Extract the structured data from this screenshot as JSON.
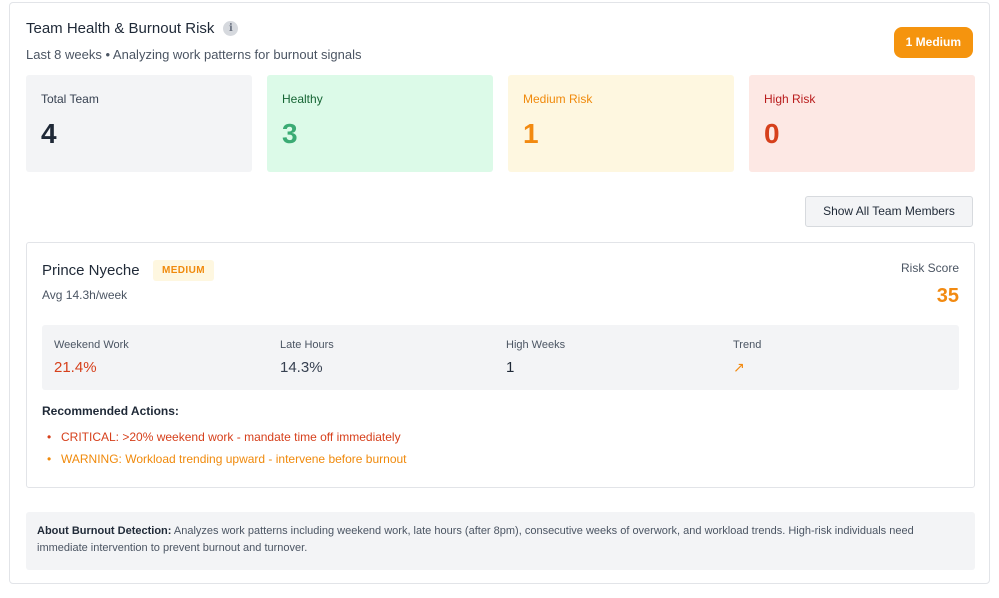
{
  "header": {
    "title": "Team Health & Burnout Risk",
    "subtitle": "Last 8 weeks • Analyzing work patterns for burnout signals",
    "risk_pill": "1 Medium"
  },
  "stats": [
    {
      "label": "Total Team",
      "value": "4"
    },
    {
      "label": "Healthy",
      "value": "3"
    },
    {
      "label": "Medium Risk",
      "value": "1"
    },
    {
      "label": "High Risk",
      "value": "0"
    }
  ],
  "show_all_label": "Show All Team Members",
  "member": {
    "name": "Prince Nyeche",
    "badge": "MEDIUM",
    "avg": "Avg 14.3h/week",
    "risk_score_label": "Risk Score",
    "risk_score": "35",
    "metrics": [
      {
        "label": "Weekend Work",
        "value": "21.4%"
      },
      {
        "label": "Late Hours",
        "value": "14.3%"
      },
      {
        "label": "High Weeks",
        "value": "1"
      },
      {
        "label": "Trend",
        "value": "↗"
      }
    ],
    "recommendations_title": "Recommended Actions:",
    "recommendations": [
      "CRITICAL: >20% weekend work - mandate time off immediately",
      "WARNING: Workload trending upward - intervene before burnout"
    ]
  },
  "about": {
    "title": "About Burnout Detection:",
    "text": " Analyzes work patterns including weekend work, late hours (after 8pm), consecutive weeks of overwork, and workload trends. High-risk individuals need immediate intervention to prevent burnout and turnover."
  },
  "icons": {
    "info": "info-icon",
    "trend": "trend-up-arrow-icon"
  },
  "colors": {
    "accent_orange": "#f5940e",
    "healthy_green": "#3bab74",
    "high_red": "#d6401c"
  }
}
